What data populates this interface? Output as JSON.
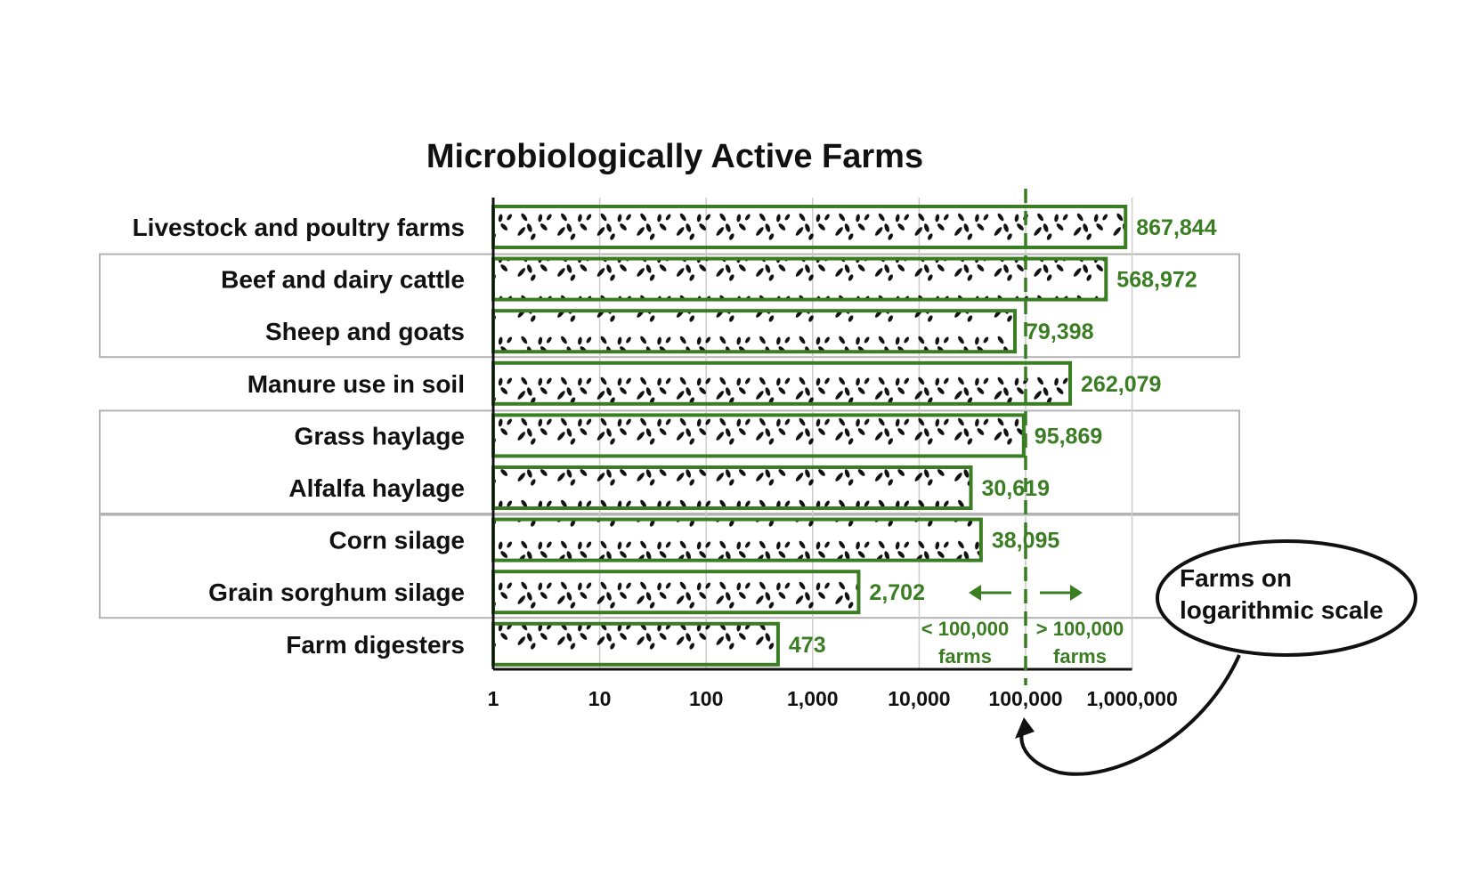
{
  "chart_data": {
    "type": "bar",
    "orientation": "horizontal",
    "title": "Microbiologically Active Farms",
    "xlabel": "",
    "ylabel": "",
    "x_scale": "log",
    "xlim": [
      1,
      1000000
    ],
    "x_ticks": [
      "1",
      "10",
      "100",
      "1,000",
      "10,000",
      "100,000",
      "1,000,000"
    ],
    "categories": [
      "Livestock and poultry farms",
      "Beef and dairy cattle",
      "Sheep and goats",
      "Manure use in soil",
      "Grass haylage",
      "Alfalfa haylage",
      "Corn silage",
      "Grain sorghum silage",
      "Farm digesters"
    ],
    "values": [
      867844,
      568972,
      79398,
      262079,
      95869,
      30619,
      38095,
      2702,
      473
    ],
    "value_labels": [
      "867,844",
      "568,972",
      "79,398",
      "262,079",
      "95,869",
      "30,619",
      "38,095",
      "2,702",
      "473"
    ],
    "groups": [
      [
        1,
        2
      ],
      [
        4,
        5
      ],
      [
        6,
        7
      ]
    ],
    "grid": true,
    "bar_fill": "microbe pattern",
    "threshold": {
      "value": 100000,
      "left_label": [
        "< 100,000",
        "farms"
      ],
      "right_label": [
        "> 100,000",
        "farms"
      ]
    },
    "callout": [
      "Farms on",
      "logarithmic scale"
    ],
    "colors": {
      "bar_outline": "#3a7d23",
      "label": "#3a7d23",
      "group_border": "#b3b3b3",
      "grid": "#cccccc",
      "axis": "#111111"
    }
  }
}
